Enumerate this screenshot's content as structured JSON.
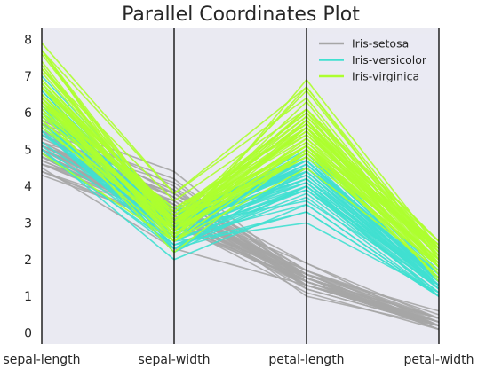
{
  "chart_data": {
    "type": "parallel-coordinates",
    "title": "Parallel Coordinates Plot",
    "axes": [
      "sepal-length",
      "sepal-width",
      "petal-length",
      "petal-width"
    ],
    "ylim": [
      -0.3,
      8.3
    ],
    "yticks": [
      "0",
      "1",
      "2",
      "3",
      "4",
      "5",
      "6",
      "7",
      "8"
    ],
    "grid": false,
    "legend_position": "top-right",
    "background_color": "#eaeaf2",
    "series": [
      {
        "name": "Iris-setosa",
        "color": "#a6a6a6",
        "lines": [
          [
            5.1,
            3.5,
            1.4,
            0.2
          ],
          [
            4.9,
            3.0,
            1.4,
            0.2
          ],
          [
            4.7,
            3.2,
            1.3,
            0.2
          ],
          [
            4.6,
            3.1,
            1.5,
            0.2
          ],
          [
            5.0,
            3.6,
            1.4,
            0.2
          ],
          [
            5.4,
            3.9,
            1.7,
            0.4
          ],
          [
            4.6,
            3.4,
            1.4,
            0.3
          ],
          [
            5.0,
            3.4,
            1.5,
            0.2
          ],
          [
            4.4,
            2.9,
            1.4,
            0.2
          ],
          [
            4.9,
            3.1,
            1.5,
            0.1
          ],
          [
            5.4,
            3.7,
            1.5,
            0.2
          ],
          [
            4.8,
            3.4,
            1.6,
            0.2
          ],
          [
            4.8,
            3.0,
            1.4,
            0.1
          ],
          [
            4.3,
            3.0,
            1.1,
            0.1
          ],
          [
            5.8,
            4.0,
            1.2,
            0.2
          ],
          [
            5.7,
            4.4,
            1.5,
            0.4
          ],
          [
            5.4,
            3.9,
            1.3,
            0.4
          ],
          [
            5.1,
            3.5,
            1.4,
            0.3
          ],
          [
            5.7,
            3.8,
            1.7,
            0.3
          ],
          [
            5.1,
            3.8,
            1.5,
            0.3
          ],
          [
            5.4,
            3.4,
            1.7,
            0.2
          ],
          [
            5.1,
            3.7,
            1.5,
            0.4
          ],
          [
            4.6,
            3.6,
            1.0,
            0.2
          ],
          [
            5.1,
            3.3,
            1.7,
            0.5
          ],
          [
            4.8,
            3.4,
            1.9,
            0.2
          ],
          [
            5.0,
            3.0,
            1.6,
            0.2
          ],
          [
            5.0,
            3.4,
            1.6,
            0.4
          ],
          [
            5.2,
            3.5,
            1.5,
            0.2
          ],
          [
            5.2,
            3.4,
            1.4,
            0.2
          ],
          [
            4.7,
            3.2,
            1.6,
            0.2
          ],
          [
            4.8,
            3.1,
            1.6,
            0.2
          ],
          [
            5.4,
            3.4,
            1.5,
            0.4
          ],
          [
            5.2,
            4.1,
            1.5,
            0.1
          ],
          [
            5.5,
            4.2,
            1.4,
            0.2
          ],
          [
            4.9,
            3.1,
            1.5,
            0.1
          ],
          [
            5.0,
            3.2,
            1.2,
            0.2
          ],
          [
            5.5,
            3.5,
            1.3,
            0.2
          ],
          [
            4.9,
            3.1,
            1.5,
            0.1
          ],
          [
            4.4,
            3.0,
            1.3,
            0.2
          ],
          [
            5.1,
            3.4,
            1.5,
            0.2
          ],
          [
            5.0,
            3.5,
            1.3,
            0.3
          ],
          [
            4.5,
            2.3,
            1.3,
            0.3
          ],
          [
            4.4,
            3.2,
            1.3,
            0.2
          ],
          [
            5.0,
            3.5,
            1.6,
            0.6
          ],
          [
            5.1,
            3.8,
            1.9,
            0.4
          ],
          [
            4.8,
            3.0,
            1.4,
            0.3
          ],
          [
            5.1,
            3.8,
            1.6,
            0.2
          ],
          [
            4.6,
            3.2,
            1.4,
            0.2
          ],
          [
            5.3,
            3.7,
            1.5,
            0.2
          ],
          [
            5.0,
            3.3,
            1.4,
            0.2
          ]
        ]
      },
      {
        "name": "Iris-versicolor",
        "color": "#40e0d0",
        "lines": [
          [
            7.0,
            3.2,
            4.7,
            1.4
          ],
          [
            6.4,
            3.2,
            4.5,
            1.5
          ],
          [
            6.9,
            3.1,
            4.9,
            1.5
          ],
          [
            5.5,
            2.3,
            4.0,
            1.3
          ],
          [
            6.5,
            2.8,
            4.6,
            1.5
          ],
          [
            5.7,
            2.8,
            4.5,
            1.3
          ],
          [
            6.3,
            3.3,
            4.7,
            1.6
          ],
          [
            4.9,
            2.4,
            3.3,
            1.0
          ],
          [
            6.6,
            2.9,
            4.6,
            1.3
          ],
          [
            5.2,
            2.7,
            3.9,
            1.4
          ],
          [
            5.0,
            2.0,
            3.5,
            1.0
          ],
          [
            5.9,
            3.0,
            4.2,
            1.5
          ],
          [
            6.0,
            2.2,
            4.0,
            1.0
          ],
          [
            6.1,
            2.9,
            4.7,
            1.4
          ],
          [
            5.6,
            2.9,
            3.6,
            1.3
          ],
          [
            6.7,
            3.1,
            4.4,
            1.4
          ],
          [
            5.6,
            3.0,
            4.5,
            1.5
          ],
          [
            5.8,
            2.7,
            4.1,
            1.0
          ],
          [
            6.2,
            2.2,
            4.5,
            1.5
          ],
          [
            5.6,
            2.5,
            3.9,
            1.1
          ],
          [
            5.9,
            3.2,
            4.8,
            1.8
          ],
          [
            6.1,
            2.8,
            4.0,
            1.3
          ],
          [
            6.3,
            2.5,
            4.9,
            1.5
          ],
          [
            6.1,
            2.8,
            4.7,
            1.2
          ],
          [
            6.4,
            2.9,
            4.3,
            1.3
          ],
          [
            6.6,
            3.0,
            4.4,
            1.4
          ],
          [
            6.8,
            2.8,
            4.8,
            1.4
          ],
          [
            6.7,
            3.0,
            5.0,
            1.7
          ],
          [
            6.0,
            2.9,
            4.5,
            1.5
          ],
          [
            5.7,
            2.6,
            3.5,
            1.0
          ],
          [
            5.5,
            2.4,
            3.8,
            1.1
          ],
          [
            5.5,
            2.4,
            3.7,
            1.0
          ],
          [
            5.8,
            2.7,
            3.9,
            1.2
          ],
          [
            6.0,
            2.7,
            5.1,
            1.6
          ],
          [
            5.4,
            3.0,
            4.5,
            1.5
          ],
          [
            6.0,
            3.4,
            4.5,
            1.6
          ],
          [
            6.7,
            3.1,
            4.7,
            1.5
          ],
          [
            6.3,
            2.3,
            4.4,
            1.3
          ],
          [
            5.6,
            3.0,
            4.1,
            1.3
          ],
          [
            5.5,
            2.5,
            4.0,
            1.3
          ],
          [
            5.5,
            2.6,
            4.4,
            1.2
          ],
          [
            6.1,
            3.0,
            4.6,
            1.4
          ],
          [
            5.8,
            2.6,
            4.0,
            1.2
          ],
          [
            5.0,
            2.3,
            3.3,
            1.0
          ],
          [
            5.6,
            2.7,
            4.2,
            1.3
          ],
          [
            5.7,
            3.0,
            4.2,
            1.2
          ],
          [
            5.7,
            2.9,
            4.2,
            1.3
          ],
          [
            6.2,
            2.9,
            4.3,
            1.3
          ],
          [
            5.1,
            2.5,
            3.0,
            1.1
          ],
          [
            5.7,
            2.8,
            4.1,
            1.3
          ]
        ]
      },
      {
        "name": "Iris-virginica",
        "color": "#adff2f",
        "lines": [
          [
            6.3,
            3.3,
            6.0,
            2.5
          ],
          [
            5.8,
            2.7,
            5.1,
            1.9
          ],
          [
            7.1,
            3.0,
            5.9,
            2.1
          ],
          [
            6.3,
            2.9,
            5.6,
            1.8
          ],
          [
            6.5,
            3.0,
            5.8,
            2.2
          ],
          [
            7.6,
            3.0,
            6.6,
            2.1
          ],
          [
            4.9,
            2.5,
            4.5,
            1.7
          ],
          [
            7.3,
            2.9,
            6.3,
            1.8
          ],
          [
            6.7,
            2.5,
            5.8,
            1.8
          ],
          [
            7.2,
            3.6,
            6.1,
            2.5
          ],
          [
            6.5,
            3.2,
            5.1,
            2.0
          ],
          [
            6.4,
            2.7,
            5.3,
            1.9
          ],
          [
            6.8,
            3.0,
            5.5,
            2.1
          ],
          [
            5.7,
            2.5,
            5.0,
            2.0
          ],
          [
            5.8,
            2.8,
            5.1,
            2.4
          ],
          [
            6.4,
            3.2,
            5.3,
            2.3
          ],
          [
            6.5,
            3.0,
            5.5,
            1.8
          ],
          [
            7.7,
            3.8,
            6.7,
            2.2
          ],
          [
            7.7,
            2.6,
            6.9,
            2.3
          ],
          [
            6.0,
            2.2,
            5.0,
            1.5
          ],
          [
            6.9,
            3.2,
            5.7,
            2.3
          ],
          [
            5.6,
            2.8,
            4.9,
            2.0
          ],
          [
            7.7,
            2.8,
            6.7,
            2.0
          ],
          [
            6.3,
            2.7,
            4.9,
            1.8
          ],
          [
            6.7,
            3.3,
            5.7,
            2.1
          ],
          [
            7.2,
            3.2,
            6.0,
            1.8
          ],
          [
            6.2,
            2.8,
            4.8,
            1.8
          ],
          [
            6.1,
            3.0,
            4.9,
            1.8
          ],
          [
            6.4,
            2.8,
            5.6,
            2.1
          ],
          [
            7.2,
            3.0,
            5.8,
            1.6
          ],
          [
            7.4,
            2.8,
            6.1,
            1.9
          ],
          [
            7.9,
            3.8,
            6.4,
            2.0
          ],
          [
            6.4,
            2.8,
            5.6,
            2.2
          ],
          [
            6.3,
            2.8,
            5.1,
            1.5
          ],
          [
            6.1,
            2.6,
            5.6,
            1.4
          ],
          [
            7.7,
            3.0,
            6.1,
            2.3
          ],
          [
            6.3,
            3.4,
            5.6,
            2.4
          ],
          [
            6.4,
            3.1,
            5.5,
            1.8
          ],
          [
            6.0,
            3.0,
            4.8,
            1.8
          ],
          [
            6.9,
            3.1,
            5.4,
            2.1
          ],
          [
            6.7,
            3.1,
            5.6,
            2.4
          ],
          [
            6.9,
            3.1,
            5.1,
            2.3
          ],
          [
            5.8,
            2.7,
            5.1,
            1.9
          ],
          [
            6.8,
            3.2,
            5.9,
            2.3
          ],
          [
            6.7,
            3.3,
            5.7,
            2.5
          ],
          [
            6.7,
            3.0,
            5.2,
            2.3
          ],
          [
            6.3,
            2.5,
            5.0,
            1.9
          ],
          [
            6.5,
            3.0,
            5.2,
            2.0
          ],
          [
            6.2,
            3.4,
            5.4,
            2.3
          ],
          [
            5.9,
            3.0,
            5.1,
            1.8
          ]
        ]
      }
    ]
  }
}
